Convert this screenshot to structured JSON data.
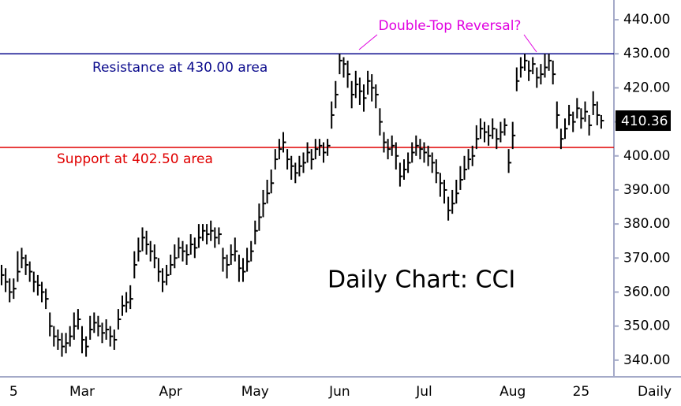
{
  "chart_data": {
    "type": "ohlc",
    "title": "Daily Chart: CCI",
    "x_label": "Daily",
    "annotation": "Double-Top Reversal?",
    "categories": [
      null,
      null,
      null,
      "5",
      null,
      null,
      null,
      null,
      null,
      null,
      null,
      null,
      null,
      null,
      null,
      null,
      null,
      null,
      null,
      null,
      "Mar",
      null,
      null,
      null,
      null,
      null,
      null,
      null,
      null,
      null,
      null,
      null,
      null,
      null,
      null,
      null,
      null,
      null,
      null,
      null,
      null,
      null,
      "Apr",
      null,
      null,
      null,
      null,
      null,
      null,
      null,
      null,
      null,
      null,
      null,
      null,
      null,
      null,
      null,
      null,
      null,
      null,
      null,
      null,
      "May",
      null,
      null,
      null,
      null,
      null,
      null,
      null,
      null,
      null,
      null,
      null,
      null,
      null,
      null,
      null,
      null,
      null,
      null,
      null,
      null,
      "Jun",
      null,
      null,
      null,
      null,
      null,
      null,
      null,
      null,
      null,
      null,
      null,
      null,
      null,
      null,
      null,
      null,
      null,
      null,
      null,
      null,
      "Jul",
      null,
      null,
      null,
      null,
      null,
      null,
      null,
      null,
      null,
      null,
      null,
      null,
      null,
      null,
      null,
      null,
      null,
      null,
      null,
      null,
      null,
      "Aug",
      null,
      null,
      null,
      null,
      null,
      null,
      null,
      null,
      null,
      null,
      null,
      null,
      null,
      null,
      null,
      null,
      "25",
      null,
      null,
      null,
      null,
      null
    ],
    "high": [
      368,
      367,
      364,
      364,
      372,
      373,
      371,
      369,
      366,
      365,
      363,
      361,
      354,
      350,
      349,
      348,
      348,
      350,
      354,
      355,
      350,
      347,
      353,
      354,
      353,
      351,
      352,
      350,
      349,
      355,
      359,
      360,
      362,
      372,
      376,
      379,
      378,
      375,
      374,
      370,
      367,
      368,
      371,
      374,
      376,
      375,
      374,
      377,
      376,
      380,
      380,
      380,
      381,
      379,
      379,
      373,
      371,
      374,
      376,
      371,
      370,
      373,
      375,
      381,
      386,
      390,
      393,
      396,
      402,
      405,
      407,
      402,
      400,
      398,
      400,
      401,
      404,
      402,
      405,
      405,
      404,
      405,
      416,
      422,
      430,
      429,
      428,
      422,
      425,
      423,
      421,
      425,
      424,
      421,
      414,
      407,
      405,
      406,
      404,
      398,
      399,
      401,
      404,
      406,
      405,
      404,
      403,
      401,
      399,
      395,
      393,
      388,
      390,
      393,
      397,
      400,
      402,
      403,
      409,
      411,
      410,
      409,
      411,
      408,
      410,
      411,
      402,
      410,
      426,
      429,
      430,
      428,
      429,
      426,
      427,
      430,
      430,
      428,
      416,
      408,
      411,
      415,
      413,
      417,
      414,
      416,
      412,
      419,
      416,
      412
    ],
    "low": [
      362,
      360,
      357,
      358,
      363,
      367,
      365,
      363,
      360,
      359,
      357,
      355,
      347,
      344,
      343,
      341,
      342,
      344,
      346,
      349,
      342,
      341,
      346,
      348,
      347,
      345,
      346,
      344,
      343,
      349,
      353,
      354,
      355,
      364,
      369,
      372,
      371,
      369,
      367,
      363,
      360,
      362,
      365,
      367,
      370,
      369,
      368,
      371,
      370,
      373,
      375,
      374,
      375,
      373,
      374,
      366,
      364,
      368,
      369,
      363,
      363,
      366,
      369,
      374,
      378,
      382,
      386,
      389,
      396,
      399,
      401,
      396,
      393,
      392,
      394,
      395,
      398,
      396,
      399,
      400,
      398,
      400,
      408,
      414,
      424,
      423,
      420,
      414,
      417,
      415,
      413,
      418,
      416,
      414,
      406,
      401,
      399,
      400,
      396,
      391,
      393,
      395,
      398,
      400,
      399,
      398,
      397,
      395,
      392,
      388,
      386,
      381,
      383,
      386,
      390,
      393,
      396,
      397,
      402,
      405,
      404,
      403,
      405,
      402,
      404,
      406,
      395,
      402,
      419,
      423,
      425,
      422,
      424,
      420,
      421,
      423,
      425,
      421,
      408,
      402,
      405,
      409,
      407,
      411,
      408,
      410,
      406,
      412,
      409,
      408
    ],
    "close": [
      365,
      363,
      360,
      361,
      366,
      370,
      368,
      366,
      363,
      362,
      360,
      358,
      350,
      347,
      346,
      344,
      345,
      347,
      350,
      352,
      346,
      344,
      349,
      351,
      350,
      348,
      349,
      347,
      346,
      352,
      356,
      357,
      358,
      368,
      372,
      376,
      374,
      372,
      370,
      366,
      363,
      365,
      368,
      370,
      373,
      372,
      371,
      374,
      373,
      376,
      378,
      377,
      378,
      376,
      377,
      370,
      368,
      371,
      372,
      367,
      366,
      369,
      372,
      378,
      382,
      386,
      389,
      392,
      399,
      402,
      404,
      399,
      397,
      395,
      397,
      398,
      401,
      399,
      402,
      403,
      401,
      403,
      412,
      418,
      428,
      427,
      424,
      418,
      421,
      419,
      417,
      422,
      420,
      418,
      410,
      404,
      402,
      403,
      400,
      394,
      396,
      398,
      401,
      403,
      402,
      401,
      400,
      398,
      395,
      392,
      390,
      384,
      386,
      389,
      393,
      396,
      399,
      400,
      405,
      408,
      407,
      406,
      408,
      405,
      407,
      409,
      398,
      406,
      422,
      426,
      428,
      425,
      427,
      423,
      424,
      426,
      428,
      424,
      412,
      405,
      408,
      412,
      410,
      414,
      411,
      413,
      409,
      415,
      412,
      410.36
    ],
    "color": "#000000",
    "ylim": [
      335.1,
      445.8
    ],
    "yticks": [
      {
        "value": 340,
        "label": "340.00"
      },
      {
        "value": 350,
        "label": "350.00"
      },
      {
        "value": 360,
        "label": "360.00"
      },
      {
        "value": 370,
        "label": "370.00"
      },
      {
        "value": 380,
        "label": "380.00"
      },
      {
        "value": 390,
        "label": "390.00"
      },
      {
        "value": 400,
        "label": "400.00"
      },
      {
        "value": 410,
        "label": "410.00"
      },
      {
        "value": 420,
        "label": "420.00"
      },
      {
        "value": 430,
        "label": "430.00"
      },
      {
        "value": 440,
        "label": "440.00"
      }
    ],
    "hlines": [
      {
        "value": 430,
        "label": "Resistance at 430.00 area",
        "color": "#0a0a8c"
      },
      {
        "value": 402.5,
        "label": "Support at 402.50 area",
        "color": "#e00000"
      }
    ],
    "grid": false
  }
}
